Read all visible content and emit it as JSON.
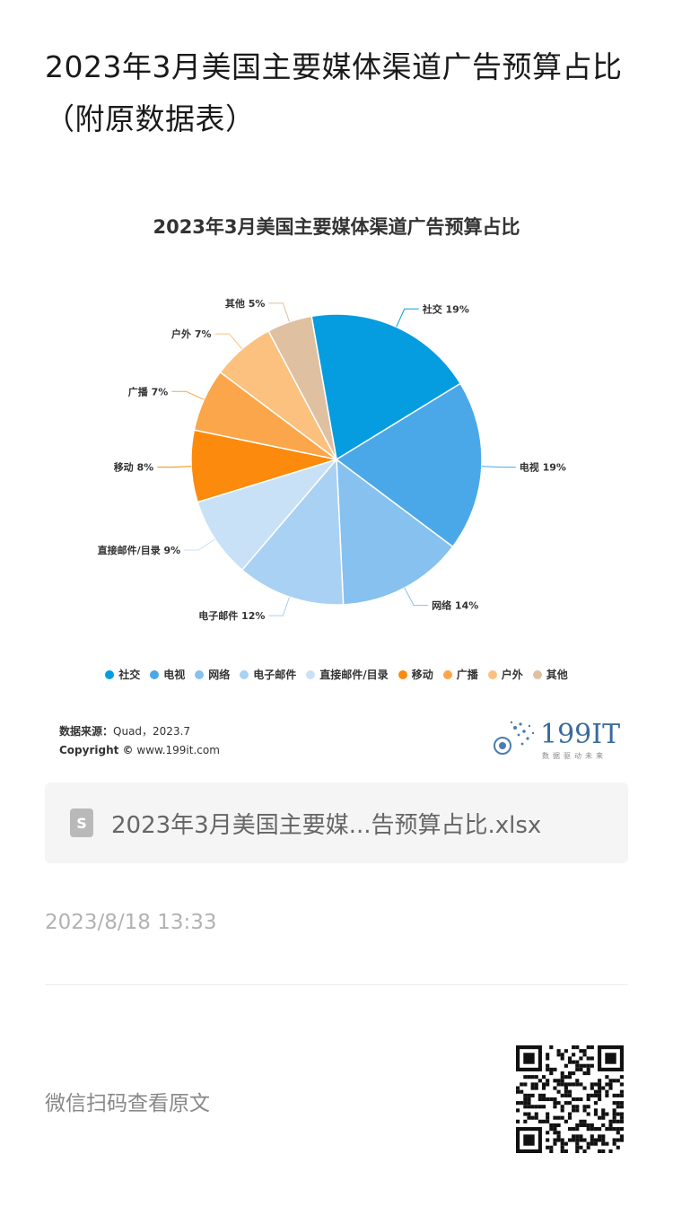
{
  "article": {
    "title": "2023年3月美国主要媒体渠道广告预算占比（附原数据表）"
  },
  "chart_data": {
    "type": "pie",
    "title": "2023年3月美国主要媒体渠道广告预算占比",
    "unit": "%",
    "legend_position": "bottom",
    "categories": [
      "社交",
      "电视",
      "网络",
      "电子邮件",
      "直接邮件/目录",
      "移动",
      "广播",
      "户外",
      "其他"
    ],
    "values": [
      19,
      19,
      14,
      12,
      9,
      8,
      7,
      7,
      5
    ],
    "labels": [
      "社交 19%",
      "电视 19%",
      "网络 14%",
      "电子邮件 12%",
      "直接邮件/目录 9%",
      "移动 8%",
      "广播 7%",
      "户外 7%",
      "其他 5%"
    ],
    "colors": [
      "#069de0",
      "#4aa8e8",
      "#86c1ef",
      "#a9d1f3",
      "#c9e1f7",
      "#fb8a0d",
      "#fba64a",
      "#fcc17e",
      "#dfc0a0"
    ]
  },
  "source": {
    "label": "数据来源：",
    "text": "Quad，2023.7",
    "copyright_label": "Copyright ©",
    "copyright_text": "www.199it.com"
  },
  "brand": {
    "name": "199IT",
    "tagline": "数据驱动未来"
  },
  "file": {
    "icon_letter": "S",
    "name": "2023年3月美国主要媒...告预算占比.xlsx"
  },
  "date": "2023/8/18 13:33",
  "footer": {
    "scan_text": "微信扫码查看原文"
  }
}
